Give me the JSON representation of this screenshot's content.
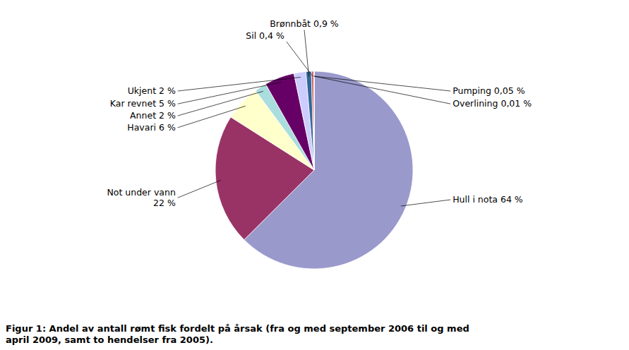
{
  "chart_data": {
    "type": "pie",
    "values": [
      64,
      22,
      6,
      2,
      5,
      2,
      0.9,
      0.4,
      0.05,
      0.01
    ],
    "value_labels": [
      "Hull i nota 64 %",
      "Not under vann\n22 %",
      "Havari 6 %",
      "Annet 2 %",
      "Kar revnet 5 %",
      "Ukjent 2 %",
      "Brønnbåt 0,9 %",
      "Sil 0,4 %",
      "Pumping 0,05 %",
      "Overlining 0,01 %"
    ],
    "colors": [
      "#9999cc",
      "#993366",
      "#ffffcc",
      "#aadddd",
      "#660066",
      "#ccccff",
      "#336699",
      "#cc6666",
      "#4488bb",
      "#e8e8f8"
    ],
    "data_labels": true,
    "caption": "Figur 1: Andel av antall rømt fisk fordelt på årsak (fra og med september 2006 til og med\napril 2009, samt to hendelser fra 2005)."
  }
}
